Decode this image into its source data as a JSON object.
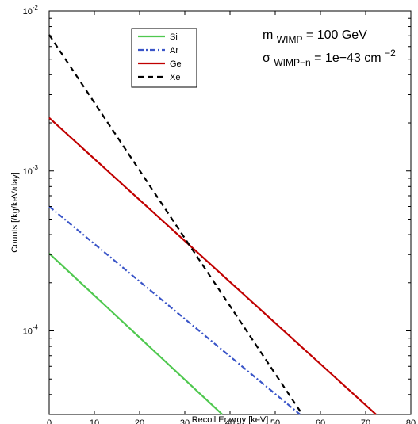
{
  "chart_data": {
    "type": "line",
    "xlabel": "Recoil Energy [keV]",
    "ylabel": "Counts [/kg/keV/day]",
    "xlim": [
      0,
      80
    ],
    "ylim": [
      3e-05,
      0.01
    ],
    "yscale": "log",
    "grid": false,
    "legend_position": "top-left",
    "x_ticks": [
      "0",
      "10",
      "20",
      "30",
      "40",
      "50",
      "60",
      "70",
      "80"
    ],
    "y_ticks": [
      {
        "base": "10",
        "exp": "-4",
        "value": 0.0001
      },
      {
        "base": "10",
        "exp": "-3",
        "value": 0.001
      },
      {
        "base": "10",
        "exp": "-2",
        "value": 0.01
      }
    ],
    "annotation": {
      "line1_symbol": "m",
      "line1_sub": "WIMP",
      "line1_rest": " = 100 GeV",
      "line2_symbol": "σ",
      "line2_sub": "WIMP−n",
      "line2_rest": " = 1e−43 cm",
      "line2_sup": "−2"
    },
    "series": [
      {
        "name": "Si",
        "color": "#4fc84f",
        "dash": "solid",
        "x": [
          0,
          38.3
        ],
        "y": [
          0.000305,
          3e-05
        ]
      },
      {
        "name": "Ar",
        "color": "#3a55c8",
        "dash": "dashdot",
        "x": [
          0,
          55.5
        ],
        "y": [
          0.0006,
          3e-05
        ]
      },
      {
        "name": "Ge",
        "color": "#c00000",
        "dash": "solid",
        "x": [
          0,
          72.3
        ],
        "y": [
          0.00215,
          3e-05
        ]
      },
      {
        "name": "Xe",
        "color": "#000000",
        "dash": "dashed",
        "x": [
          0,
          56
        ],
        "y": [
          0.0071,
          3e-05
        ]
      }
    ]
  }
}
